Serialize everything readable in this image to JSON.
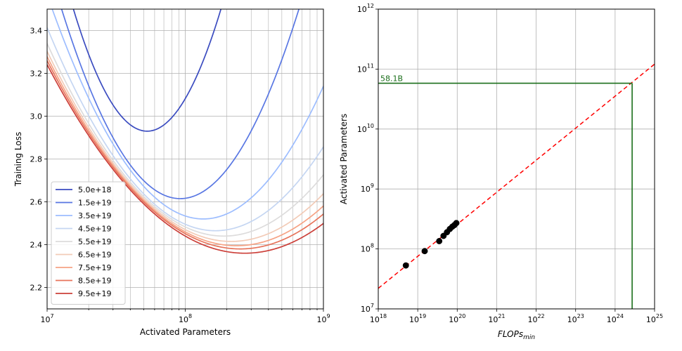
{
  "chart_data": [
    {
      "type": "line",
      "xlabel": "Activated Parameters",
      "ylabel": "Training Loss",
      "x_scale": "log",
      "xlim": [
        10000000,
        1000000000
      ],
      "ylim": [
        2.1,
        3.5
      ],
      "x_tick_labels": [
        "10^7",
        "10^8",
        "10^9"
      ],
      "y_tick_labels": [
        "2.2",
        "2.4",
        "2.6",
        "2.8",
        "3.0",
        "3.2",
        "3.4"
      ],
      "grid": true,
      "legend_position": "lower-left",
      "series": [
        {
          "name": "5.0e+18",
          "color": "#3b4cc0",
          "min_params": 53000000,
          "min_loss": 2.93,
          "curvature": 2.0
        },
        {
          "name": "1.5e+19",
          "color": "#5977e3",
          "min_params": 92000000,
          "min_loss": 2.615,
          "curvature": 1.2
        },
        {
          "name": "3.5e+19",
          "color": "#9dbdff",
          "min_params": 135000000,
          "min_loss": 2.52,
          "curvature": 0.82
        },
        {
          "name": "4.5e+19",
          "color": "#c5d6f2",
          "min_params": 165000000,
          "min_loss": 2.465,
          "curvature": 0.64
        },
        {
          "name": "5.5e+19",
          "color": "#dddcdc",
          "min_params": 190000000,
          "min_loss": 2.44,
          "curvature": 0.55
        },
        {
          "name": "6.5e+19",
          "color": "#f2cbb7",
          "min_params": 215000000,
          "min_loss": 2.415,
          "curvature": 0.5
        },
        {
          "name": "7.5e+19",
          "color": "#f6a385",
          "min_params": 235000000,
          "min_loss": 2.395,
          "curvature": 0.47
        },
        {
          "name": "8.5e+19",
          "color": "#e7745b",
          "min_params": 250000000,
          "min_loss": 2.38,
          "curvature": 0.45
        },
        {
          "name": "9.5e+19",
          "color": "#cc403a",
          "min_params": 270000000,
          "min_loss": 2.36,
          "curvature": 0.43
        }
      ]
    },
    {
      "type": "scatter",
      "xlabel_base": "FLOPs",
      "xlabel_sub": "min",
      "ylabel": "Activated Parameters",
      "x_scale": "log",
      "y_scale": "log",
      "xlim_exp": [
        18,
        25
      ],
      "ylim_exp": [
        7,
        12
      ],
      "x_tick_labels": [
        "10^18",
        "10^19",
        "10^20",
        "10^21",
        "10^22",
        "10^23",
        "10^24",
        "10^25"
      ],
      "y_tick_labels": [
        "10^7",
        "10^8",
        "10^9",
        "10^10",
        "10^11",
        "10^12"
      ],
      "grid": true,
      "points": [
        {
          "flops": 5e+18,
          "params": 53000000
        },
        {
          "flops": 1.5e+19,
          "params": 92000000
        },
        {
          "flops": 3.5e+19,
          "params": 135000000
        },
        {
          "flops": 4.5e+19,
          "params": 165000000
        },
        {
          "flops": 5.5e+19,
          "params": 190000000
        },
        {
          "flops": 6.5e+19,
          "params": 215000000
        },
        {
          "flops": 7.5e+19,
          "params": 235000000
        },
        {
          "flops": 8.5e+19,
          "params": 250000000
        },
        {
          "flops": 9.5e+19,
          "params": 270000000
        }
      ],
      "fit_line": {
        "color": "#ff0000",
        "x1": 1e+18,
        "y1": 22000000,
        "x2": 1e+25,
        "y2": 121000000000
      },
      "target": {
        "flops": 2.7e+24,
        "params": 58100000000,
        "label": "58.1B",
        "color": "#1a6e1a"
      }
    }
  ]
}
